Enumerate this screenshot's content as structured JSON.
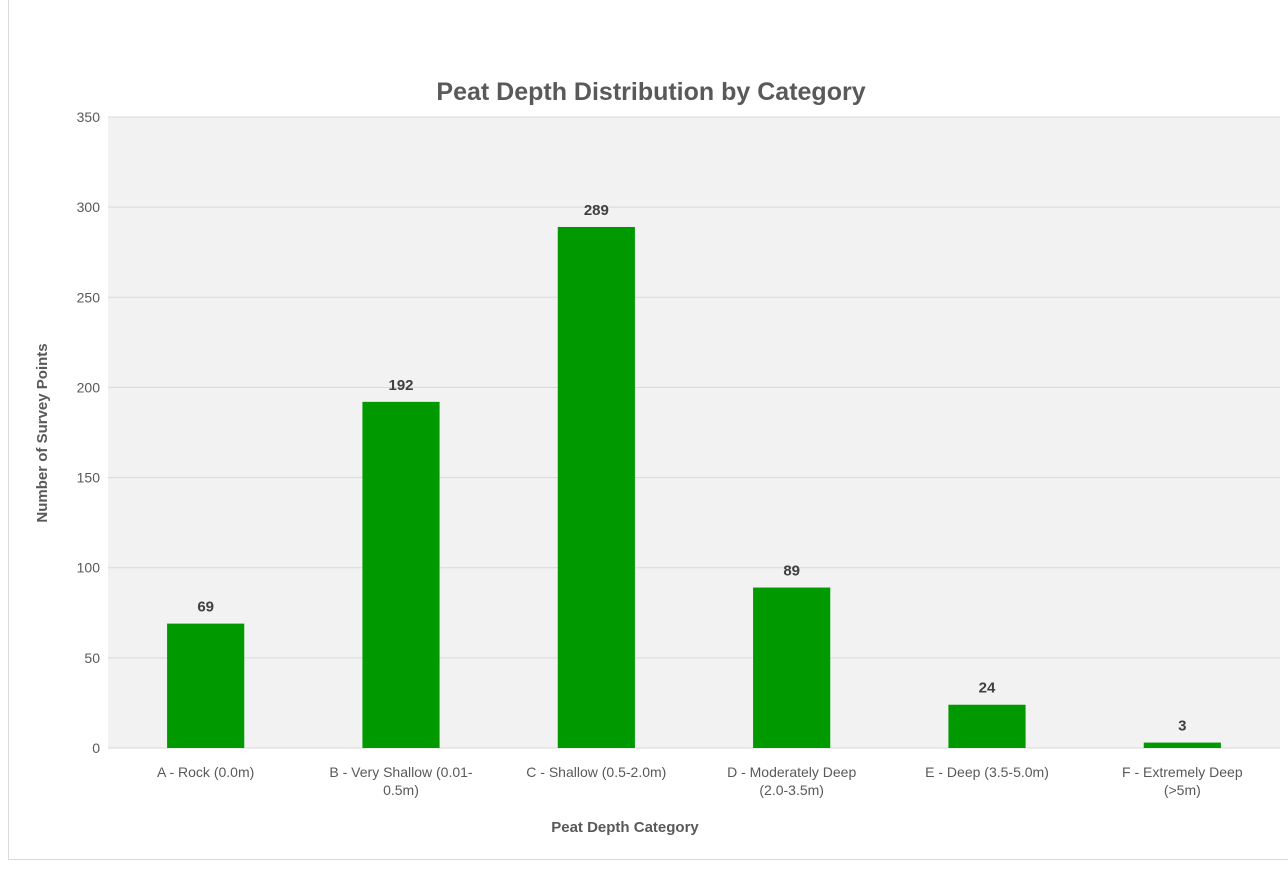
{
  "chart_data": {
    "type": "bar",
    "title": "Peat Depth Distribution by Category",
    "xlabel": "Peat Depth Category",
    "ylabel": "Number of Survey Points",
    "categories": [
      "A - Rock (0.0m)",
      "B - Very Shallow (0.01-0.5m)",
      "C - Shallow (0.5-2.0m)",
      "D - Moderately Deep (2.0-3.5m)",
      "E - Deep (3.5-5.0m)",
      "F - Extremely Deep (>5m)"
    ],
    "category_lines": [
      [
        "A - Rock (0.0m)"
      ],
      [
        "B - Very Shallow (0.01-",
        "0.5m)"
      ],
      [
        "C - Shallow (0.5-2.0m)"
      ],
      [
        "D - Moderately Deep",
        "(2.0-3.5m)"
      ],
      [
        "E - Deep (3.5-5.0m)"
      ],
      [
        "F - Extremely Deep",
        "(>5m)"
      ]
    ],
    "values": [
      69,
      192,
      289,
      89,
      24,
      3
    ],
    "data_labels": [
      "69",
      "192",
      "289",
      "89",
      "24",
      "3"
    ],
    "yticks": [
      "0",
      "50",
      "100",
      "150",
      "200",
      "250",
      "300",
      "350"
    ],
    "ylim": [
      0,
      350
    ],
    "grid": true,
    "legend": "none",
    "colors": {
      "bar": "#009900",
      "plot_background": "#f2f2f2",
      "gridline": "#d9d9d9"
    }
  }
}
